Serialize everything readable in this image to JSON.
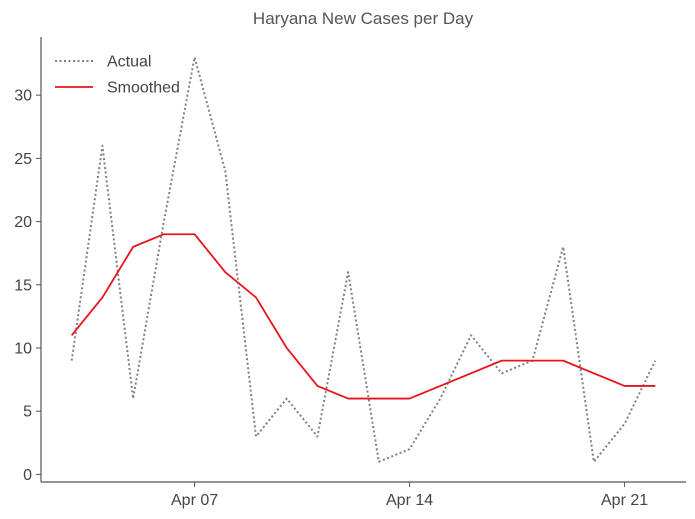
{
  "chart_data": {
    "type": "line",
    "title": "Haryana New Cases per Day",
    "xlabel": "",
    "ylabel": "",
    "x": [
      "Apr 03",
      "Apr 04",
      "Apr 05",
      "Apr 06",
      "Apr 07",
      "Apr 08",
      "Apr 09",
      "Apr 10",
      "Apr 11",
      "Apr 12",
      "Apr 13",
      "Apr 14",
      "Apr 15",
      "Apr 16",
      "Apr 17",
      "Apr 18",
      "Apr 19",
      "Apr 20",
      "Apr 21",
      "Apr 22"
    ],
    "x_ticks": [
      {
        "date": "Apr 07",
        "label": "Apr 07"
      },
      {
        "date": "Apr 14",
        "label": "Apr 14"
      },
      {
        "date": "Apr 21",
        "label": "Apr 21"
      }
    ],
    "xlim": [
      "Apr 02",
      "Apr 23"
    ],
    "ylim": [
      -0.6,
      34.6
    ],
    "y_ticks": [
      0,
      5,
      10,
      15,
      20,
      25,
      30
    ],
    "grid": false,
    "legend_position": "top-left",
    "series": [
      {
        "name": "Actual",
        "style": "dotted",
        "color": "#808080",
        "values": [
          9,
          26,
          6,
          20,
          33,
          24,
          3,
          6,
          3,
          16,
          1,
          2,
          6,
          11,
          8,
          9,
          18,
          1,
          4,
          9
        ]
      },
      {
        "name": "Smoothed",
        "style": "solid",
        "color": "#e8141c",
        "values": [
          11,
          14,
          18,
          19,
          19,
          16,
          14,
          10,
          7,
          6,
          6,
          6,
          7,
          8,
          9,
          9,
          9,
          8,
          7,
          7
        ]
      }
    ]
  }
}
